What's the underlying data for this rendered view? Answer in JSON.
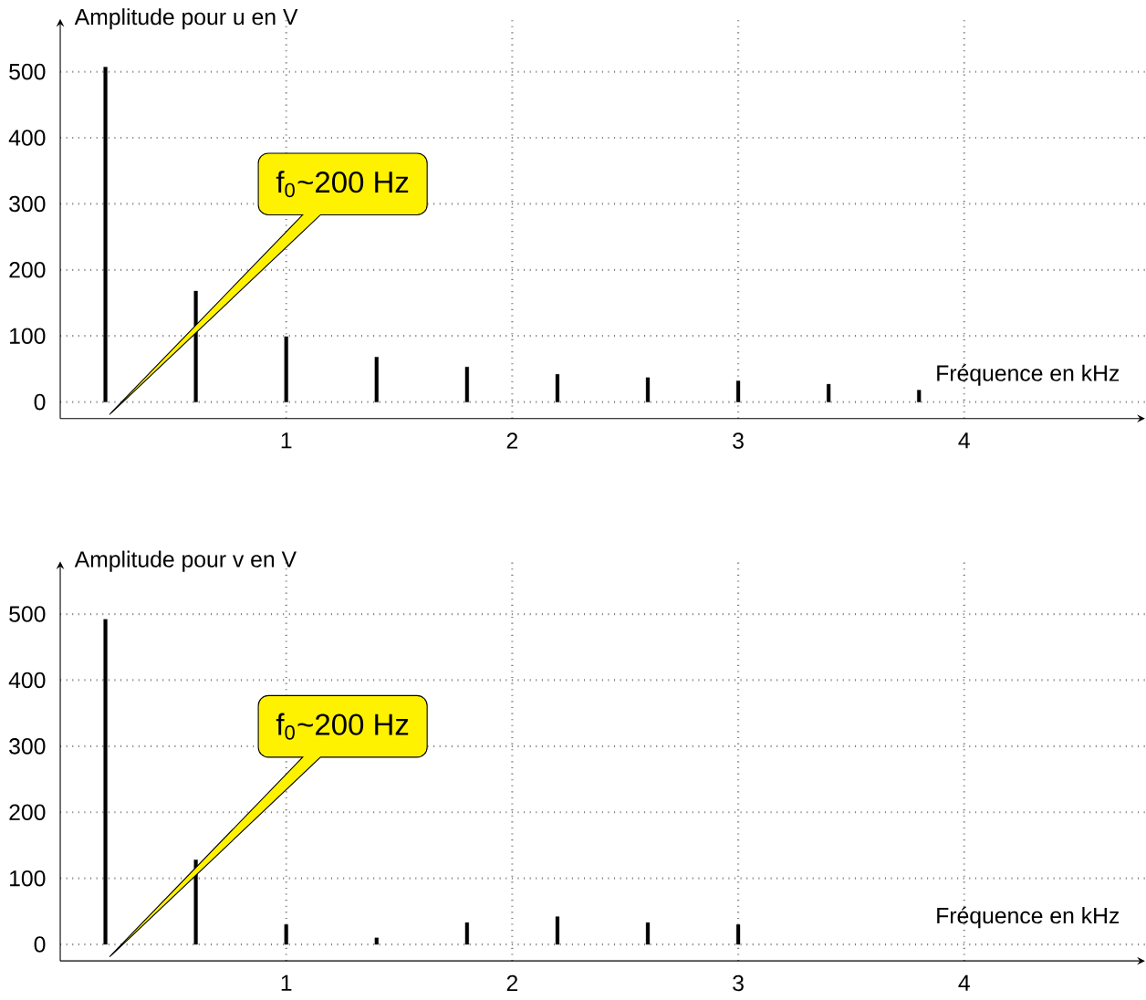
{
  "chart_data": [
    {
      "type": "bar",
      "xlabel": "Fréquence en kHz",
      "ylabel": "Amplitude pour u en V",
      "x": [
        0.2,
        0.6,
        1.0,
        1.4,
        1.8,
        2.2,
        2.6,
        3.0,
        3.4,
        3.8
      ],
      "values": [
        507,
        168,
        99,
        68,
        53,
        42,
        37,
        32,
        27,
        18
      ],
      "color": "#000000",
      "xlim": [
        0,
        4.8
      ],
      "ylim": [
        -25,
        580
      ],
      "xticks": [
        1,
        2,
        3,
        4
      ],
      "yticks": [
        0,
        100,
        200,
        300,
        400,
        500
      ],
      "grid": true,
      "annotations": [
        "f$_{0}$~200 Hz"
      ]
    },
    {
      "type": "bar",
      "xlabel": "Fréquence en kHz",
      "ylabel": "Amplitude pour v en V",
      "x": [
        0.2,
        0.6,
        1.0,
        1.4,
        1.8,
        2.2,
        2.6,
        3.0
      ],
      "values": [
        492,
        128,
        30,
        10,
        33,
        42,
        33,
        30
      ],
      "color": "#000000",
      "xlim": [
        0,
        4.8
      ],
      "ylim": [
        -25,
        580
      ],
      "xticks": [
        1,
        2,
        3,
        4
      ],
      "yticks": [
        0,
        100,
        200,
        300,
        400,
        500
      ],
      "grid": true,
      "annotations": [
        "f$_{0}$~200 Hz"
      ]
    }
  ]
}
